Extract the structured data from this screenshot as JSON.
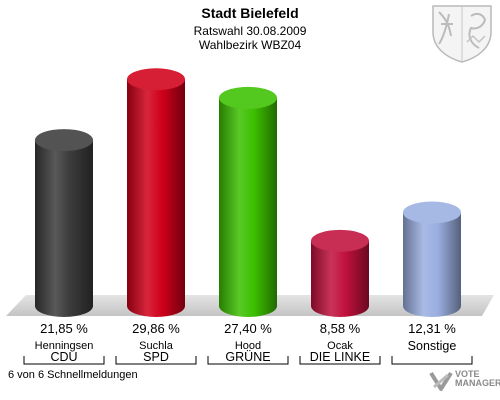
{
  "header": {
    "title": "Stadt Bielefeld",
    "subtitle": "Ratswahl 30.08.2009",
    "district": "Wahlbezirk WBZ04"
  },
  "footer": {
    "note": "6 von 6 Schnellmeldungen",
    "logo_line1": "VOTE",
    "logo_line2": "MANAGER"
  },
  "emblem": {
    "icon": "coat-of-arms-icon"
  },
  "chart_data": {
    "type": "bar",
    "title": "Stadt Bielefeld",
    "unit": "%",
    "ylim": [
      0,
      32
    ],
    "grid": false,
    "bars": [
      {
        "candidate": "Henningsen",
        "party": "CDU",
        "value": 21.85,
        "label": "21,85 %",
        "color": "#3c3c3c"
      },
      {
        "candidate": "Suchla",
        "party": "SPD",
        "value": 29.86,
        "label": "29,86 %",
        "color": "#d0001a"
      },
      {
        "candidate": "Hood",
        "party": "GRÜNE",
        "value": 27.4,
        "label": "27,40 %",
        "color": "#3cc000"
      },
      {
        "candidate": "Ocak",
        "party": "DIE LINKE",
        "value": 8.58,
        "label": "8,58 %",
        "color": "#c0103c"
      },
      {
        "candidate": "",
        "party": "Sonstige",
        "value": 12.31,
        "label": "12,31 %",
        "color": "#9aaee0"
      }
    ]
  }
}
